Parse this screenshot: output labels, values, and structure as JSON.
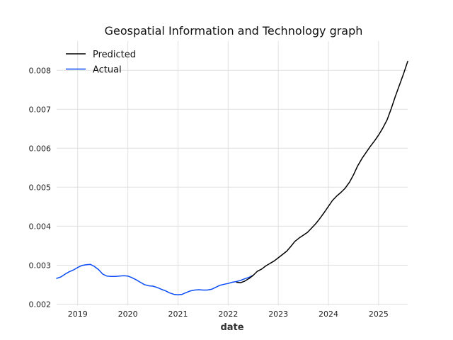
{
  "chart_data": {
    "type": "line",
    "title": "Geospatial Information and Technology graph",
    "xlabel": "date",
    "ylabel": "",
    "xlim": [
      2018.58,
      2025.58
    ],
    "ylim": [
      0.00197,
      0.00875
    ],
    "grid": true,
    "legend_position": "top-left",
    "x_ticks": [
      2019,
      2020,
      2021,
      2022,
      2023,
      2024,
      2025
    ],
    "x_tick_labels": [
      "2019",
      "2020",
      "2021",
      "2022",
      "2023",
      "2024",
      "2025"
    ],
    "y_ticks": [
      0.002,
      0.003,
      0.004,
      0.005,
      0.006,
      0.007,
      0.008
    ],
    "y_tick_labels": [
      "0.002",
      "0.003",
      "0.004",
      "0.005",
      "0.006",
      "0.007",
      "0.008"
    ],
    "series": [
      {
        "name": "Predicted",
        "color": "#000000",
        "x": [
          2022.17,
          2022.25,
          2022.33,
          2022.42,
          2022.5,
          2022.58,
          2022.67,
          2022.75,
          2022.83,
          2022.92,
          2023.0,
          2023.08,
          2023.17,
          2023.25,
          2023.33,
          2023.42,
          2023.5,
          2023.58,
          2023.67,
          2023.75,
          2023.83,
          2023.92,
          2024.0,
          2024.08,
          2024.17,
          2024.25,
          2024.33,
          2024.42,
          2024.5,
          2024.58,
          2024.67,
          2024.75,
          2024.83,
          2024.92,
          2025.0,
          2025.08,
          2025.17,
          2025.25,
          2025.33,
          2025.42,
          2025.5,
          2025.58
        ],
        "values": [
          0.00256,
          0.00255,
          0.00259,
          0.00266,
          0.00274,
          0.00284,
          0.0029,
          0.00298,
          0.00304,
          0.00311,
          0.00319,
          0.00327,
          0.00336,
          0.00348,
          0.00361,
          0.0037,
          0.00377,
          0.00384,
          0.00396,
          0.00407,
          0.0042,
          0.00436,
          0.00451,
          0.00466,
          0.00478,
          0.00487,
          0.00497,
          0.00513,
          0.00532,
          0.00554,
          0.00574,
          0.00589,
          0.00604,
          0.00619,
          0.00634,
          0.00651,
          0.00673,
          0.00701,
          0.00732,
          0.00764,
          0.00792,
          0.00823
        ]
      },
      {
        "name": "Actual",
        "color": "#0a4cf5",
        "x": [
          2018.58,
          2018.67,
          2018.75,
          2018.83,
          2018.92,
          2019.0,
          2019.08,
          2019.17,
          2019.25,
          2019.33,
          2019.42,
          2019.5,
          2019.58,
          2019.67,
          2019.75,
          2019.83,
          2019.92,
          2020.0,
          2020.08,
          2020.17,
          2020.25,
          2020.33,
          2020.42,
          2020.5,
          2020.58,
          2020.67,
          2020.75,
          2020.83,
          2020.92,
          2021.0,
          2021.08,
          2021.17,
          2021.25,
          2021.33,
          2021.42,
          2021.5,
          2021.58,
          2021.67,
          2021.75,
          2021.83,
          2021.92,
          2022.0,
          2022.08,
          2022.17,
          2022.25,
          2022.33,
          2022.42,
          2022.5
        ],
        "values": [
          0.00266,
          0.0027,
          0.00277,
          0.00283,
          0.00288,
          0.00294,
          0.00299,
          0.00301,
          0.00302,
          0.00297,
          0.00288,
          0.00277,
          0.00272,
          0.00271,
          0.00271,
          0.00272,
          0.00273,
          0.00272,
          0.00268,
          0.00262,
          0.00256,
          0.0025,
          0.00247,
          0.00246,
          0.00243,
          0.00238,
          0.00234,
          0.00229,
          0.00225,
          0.00224,
          0.00225,
          0.0023,
          0.00234,
          0.00236,
          0.00237,
          0.00236,
          0.00236,
          0.00238,
          0.00243,
          0.00248,
          0.00251,
          0.00253,
          0.00256,
          0.00258,
          0.00261,
          0.00265,
          0.00269,
          0.00274
        ]
      }
    ]
  }
}
